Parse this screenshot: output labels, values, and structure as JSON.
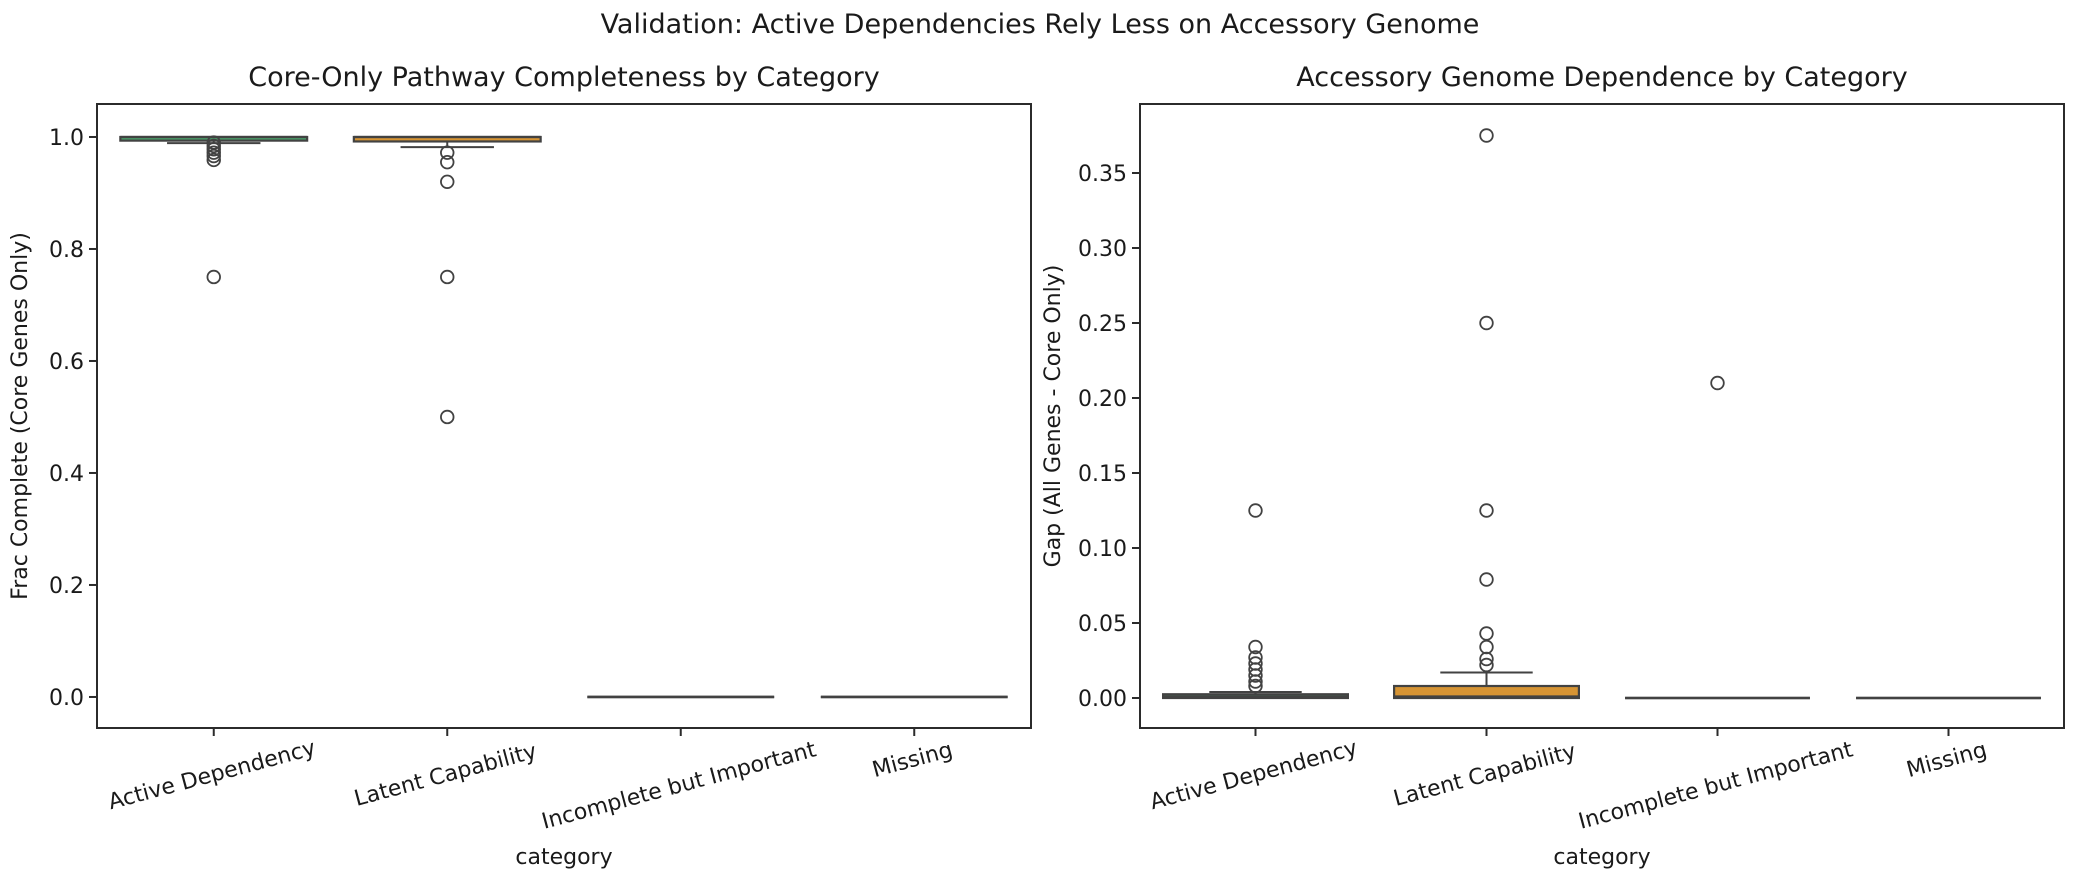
{
  "figure": {
    "suptitle": "Validation: Active Dependencies Rely Less on Accessory Genome",
    "background": "#ffffff",
    "text_color": "#1a1a1a",
    "spine_color": "#2b2b2b",
    "box_edge_color": "#424242",
    "flier_edge_color": "#424242"
  },
  "chart_data": [
    {
      "type": "box",
      "title": "Core-Only Pathway Completeness by Category",
      "xlabel": "category",
      "ylabel": "Frac Complete (Core Genes Only)",
      "grid": false,
      "legend": "none",
      "categories": [
        "Active Dependency",
        "Latent Capability",
        "Incomplete but Important",
        "Missing"
      ],
      "yticks": [
        0.0,
        0.2,
        0.4,
        0.6,
        0.8,
        1.0
      ],
      "ytick_labels": [
        "0.0",
        "0.2",
        "0.4",
        "0.6",
        "0.8",
        "1.0"
      ],
      "ylim": [
        -0.0554,
        1.0589
      ],
      "boxes": [
        {
          "label": "Active Dependency",
          "fill": "#4BA36B",
          "q1": 0.9935,
          "median": 1.0,
          "q3": 1.0,
          "whisker_low": 0.989,
          "whisker_high": 1.0,
          "outliers": [
            0.99,
            0.984,
            0.978,
            0.972,
            0.966,
            0.959,
            0.75
          ]
        },
        {
          "label": "Latent Capability",
          "fill": "#D69434",
          "q1": 0.992,
          "median": 1.0,
          "q3": 1.0,
          "whisker_low": 0.982,
          "whisker_high": 1.0,
          "outliers": [
            0.972,
            0.955,
            0.92,
            0.75,
            0.5
          ]
        },
        {
          "label": "Incomplete but Important",
          "fill": "#424242",
          "q1": 0.0,
          "median": 0.0,
          "q3": 0.0,
          "whisker_low": 0.0,
          "whisker_high": 0.0,
          "outliers": []
        },
        {
          "label": "Missing",
          "fill": "#424242",
          "q1": 0.0,
          "median": 0.0,
          "q3": 0.0,
          "whisker_low": 0.0,
          "whisker_high": 0.0,
          "outliers": []
        }
      ]
    },
    {
      "type": "box",
      "title": "Accessory Genome Dependence by Category",
      "xlabel": "category",
      "ylabel": "Gap (All Genes - Core Only)",
      "grid": false,
      "legend": "none",
      "categories": [
        "Active Dependency",
        "Latent Capability",
        "Incomplete but Important",
        "Missing"
      ],
      "yticks": [
        0.0,
        0.05,
        0.1,
        0.15,
        0.2,
        0.25,
        0.3,
        0.35
      ],
      "ytick_labels": [
        "0.00",
        "0.05",
        "0.10",
        "0.15",
        "0.20",
        "0.25",
        "0.30",
        "0.35"
      ],
      "ylim": [
        -0.02,
        0.396
      ],
      "boxes": [
        {
          "label": "Active Dependency",
          "fill": "#4BA36B",
          "q1": 0.0,
          "median": 0.001,
          "q3": 0.0025,
          "whisker_low": 0.0,
          "whisker_high": 0.004,
          "outliers": [
            0.008,
            0.011,
            0.015,
            0.019,
            0.023,
            0.027,
            0.034,
            0.125
          ]
        },
        {
          "label": "Latent Capability",
          "fill": "#D69434",
          "q1": 0.0,
          "median": 0.001,
          "q3": 0.008,
          "whisker_low": 0.0,
          "whisker_high": 0.017,
          "outliers": [
            0.022,
            0.026,
            0.034,
            0.043,
            0.079,
            0.125,
            0.25,
            0.375
          ]
        },
        {
          "label": "Incomplete but Important",
          "fill": "#424242",
          "q1": 0.0,
          "median": 0.0,
          "q3": 0.0,
          "whisker_low": 0.0,
          "whisker_high": 0.0,
          "outliers": [
            0.21
          ]
        },
        {
          "label": "Missing",
          "fill": "#424242",
          "q1": 0.0,
          "median": 0.0,
          "q3": 0.0,
          "whisker_low": 0.0,
          "whisker_high": 0.0,
          "outliers": []
        }
      ]
    }
  ]
}
